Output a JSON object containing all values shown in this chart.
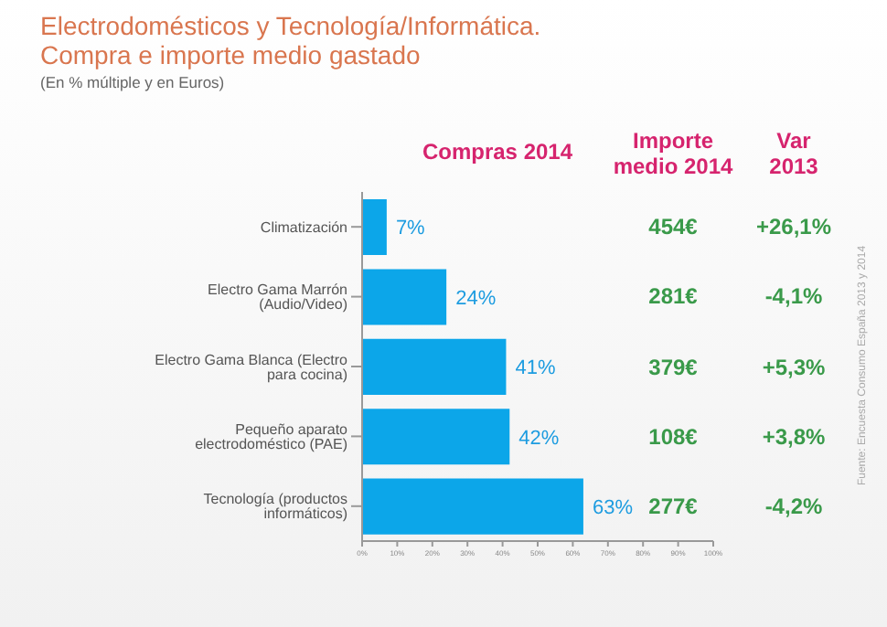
{
  "chart_data": {
    "type": "bar",
    "orientation": "horizontal",
    "title": "Electrodomésticos y Tecnología/Informática.\nCompra e importe medio gastado",
    "subtitle": "(En % múltiple y en Euros)",
    "categories": [
      "Climatización",
      "Electro Gama Marrón (Audio/Video)",
      "Electro Gama Blanca (Electro para cocina)",
      "Pequeño aparato electrodoméstico (PAE)",
      "Tecnología (productos informáticos)"
    ],
    "values": [
      7,
      24,
      41,
      42,
      63
    ],
    "color": "#0ca6e9",
    "value_labels": [
      "7%",
      "24%",
      "41%",
      "42%",
      "63%"
    ],
    "xlim": [
      0,
      100
    ],
    "xticks": [
      {
        "value": 0,
        "label": "0%"
      },
      {
        "value": 10,
        "label": "10%"
      },
      {
        "value": 20,
        "label": "20%"
      },
      {
        "value": 30,
        "label": "30%"
      },
      {
        "value": 40,
        "label": "40%"
      },
      {
        "value": 50,
        "label": "50%"
      },
      {
        "value": 60,
        "label": "60%"
      },
      {
        "value": 70,
        "label": "70%"
      },
      {
        "value": 80,
        "label": "80%"
      },
      {
        "value": 90,
        "label": "90%"
      },
      {
        "value": 100,
        "label": "100%"
      }
    ],
    "grid": false,
    "legend": false,
    "annotations": [
      "Compras 2014",
      "Importe\nmedio 2014",
      "Var\n2013",
      "Fuente: Encuesta Consumo España 2013 y 2014",
      "454€",
      "+26,1%",
      "281€",
      "-4,1%",
      "379€",
      "+5,3%",
      "108€",
      "+3,8%",
      "277€",
      "-4,2%"
    ]
  }
}
